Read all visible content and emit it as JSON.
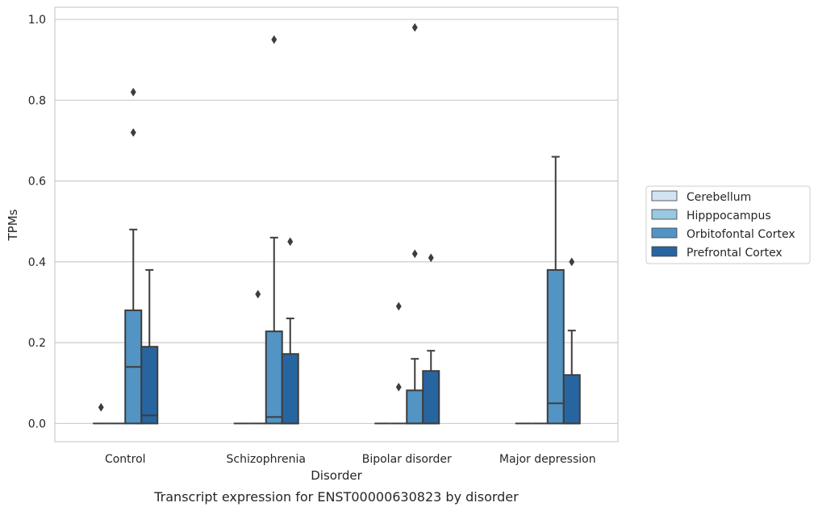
{
  "chart_data": {
    "type": "boxplot",
    "title": "Transcript expression for ENST00000630823 by disorder",
    "xlabel": "Disorder",
    "ylabel": "TPMs",
    "ylim": [
      -0.045,
      1.03
    ],
    "yticks": [
      0.0,
      0.2,
      0.4,
      0.6,
      0.8,
      1.0
    ],
    "ytick_labels": [
      "0.0",
      "0.2",
      "0.4",
      "0.6",
      "0.8",
      "1.0"
    ],
    "grid": true,
    "legend_position": "right",
    "categories": [
      "Control",
      "Schizophrenia",
      "Bipolar disorder",
      "Major depression"
    ],
    "series": [
      {
        "name": "Cerebellum",
        "color": "#d2e3f3",
        "boxes": [
          {
            "whislo": 0,
            "q1": 0,
            "med": 0,
            "q3": 0,
            "whishi": 0,
            "fliers": [
              0.04
            ]
          },
          {
            "whislo": 0,
            "q1": 0,
            "med": 0,
            "q3": 0,
            "whishi": 0,
            "fliers": []
          },
          {
            "whislo": 0,
            "q1": 0,
            "med": 0,
            "q3": 0,
            "whishi": 0,
            "fliers": []
          },
          {
            "whislo": 0,
            "q1": 0,
            "med": 0,
            "q3": 0,
            "whishi": 0,
            "fliers": []
          }
        ]
      },
      {
        "name": "Hipppocampus",
        "color": "#9ac8e0",
        "boxes": [
          {
            "whislo": 0,
            "q1": 0,
            "med": 0,
            "q3": 0,
            "whishi": 0,
            "fliers": []
          },
          {
            "whislo": 0,
            "q1": 0,
            "med": 0,
            "q3": 0,
            "whishi": 0,
            "fliers": [
              0.32
            ]
          },
          {
            "whislo": 0,
            "q1": 0,
            "med": 0,
            "q3": 0,
            "whishi": 0,
            "fliers": [
              0.09,
              0.29
            ]
          },
          {
            "whislo": 0,
            "q1": 0,
            "med": 0,
            "q3": 0,
            "whishi": 0,
            "fliers": []
          }
        ]
      },
      {
        "name": "Orbitofontal Cortex",
        "color": "#5294c4",
        "boxes": [
          {
            "whislo": 0,
            "q1": 0,
            "med": 0.14,
            "q3": 0.28,
            "whishi": 0.48,
            "fliers": [
              0.72,
              0.82
            ]
          },
          {
            "whislo": 0,
            "q1": 0,
            "med": 0.016,
            "q3": 0.228,
            "whishi": 0.46,
            "fliers": [
              0.95
            ]
          },
          {
            "whislo": 0,
            "q1": 0,
            "med": 0,
            "q3": 0.082,
            "whishi": 0.16,
            "fliers": [
              0.42,
              0.98
            ]
          },
          {
            "whislo": 0,
            "q1": 0,
            "med": 0.05,
            "q3": 0.38,
            "whishi": 0.66,
            "fliers": []
          }
        ]
      },
      {
        "name": "Prefrontal Cortex",
        "color": "#2765a1",
        "boxes": [
          {
            "whislo": 0,
            "q1": 0,
            "med": 0.02,
            "q3": 0.19,
            "whishi": 0.38,
            "fliers": []
          },
          {
            "whislo": 0,
            "q1": 0,
            "med": 0,
            "q3": 0.172,
            "whishi": 0.26,
            "fliers": [
              0.45
            ]
          },
          {
            "whislo": 0,
            "q1": 0,
            "med": 0,
            "q3": 0.13,
            "whishi": 0.18,
            "fliers": [
              0.41
            ]
          },
          {
            "whislo": 0,
            "q1": 0,
            "med": 0,
            "q3": 0.12,
            "whishi": 0.23,
            "fliers": [
              0.4
            ]
          }
        ]
      }
    ]
  }
}
